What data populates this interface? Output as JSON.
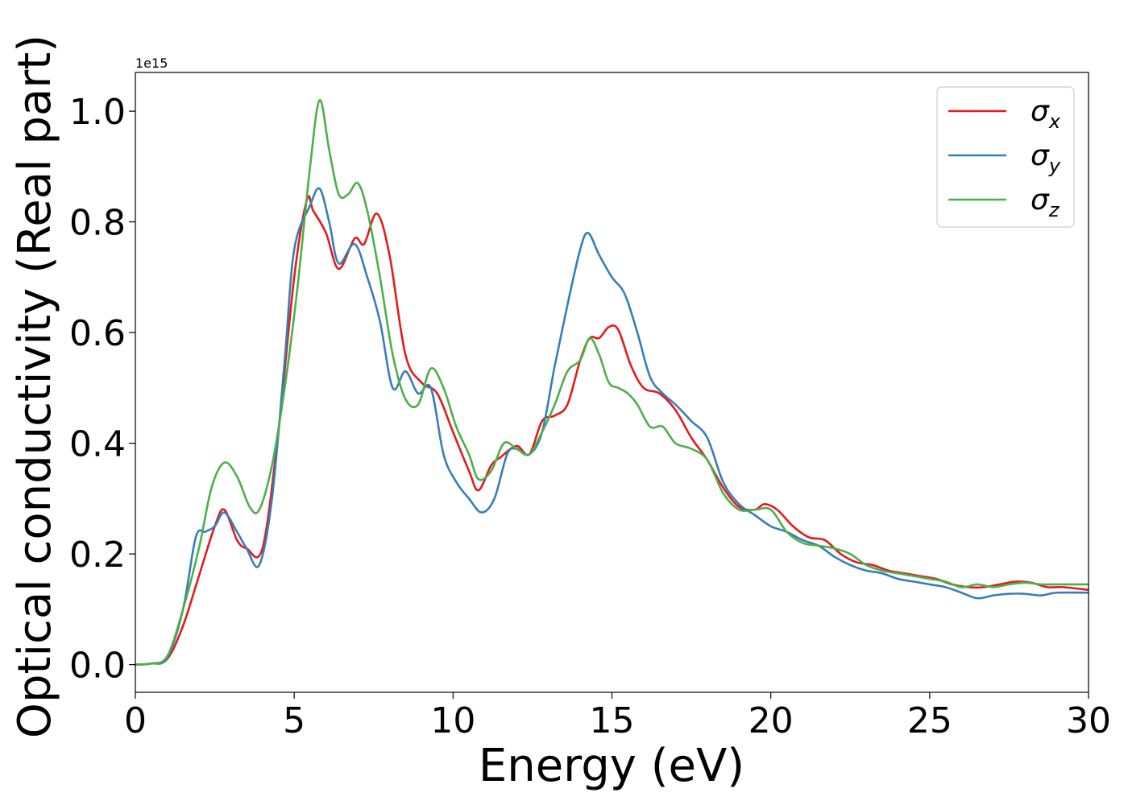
{
  "chart_data": {
    "type": "line",
    "xlabel": "Energy (eV)",
    "ylabel": "Optical conductivity (Real part)",
    "offset_text": "1e15",
    "xlim": [
      0,
      30
    ],
    "ylim": [
      -0.05,
      1.07
    ],
    "xticks": [
      0,
      5,
      10,
      15,
      20,
      25,
      30
    ],
    "xtick_labels": [
      "0",
      "5",
      "10",
      "15",
      "20",
      "25",
      "30"
    ],
    "yticks": [
      0.0,
      0.2,
      0.4,
      0.6,
      0.8,
      1.0
    ],
    "ytick_labels": [
      "0.0",
      "0.2",
      "0.4",
      "0.6",
      "0.8",
      "1.0"
    ],
    "grid": false,
    "legend_position": "top-right",
    "series": [
      {
        "name": "σx",
        "name_base": "σ",
        "name_sub": "x",
        "color": "#e41a1c",
        "x": [
          0,
          0.5,
          1.0,
          1.5,
          2.0,
          2.5,
          2.8,
          3.2,
          3.5,
          4.0,
          4.5,
          5.0,
          5.4,
          5.6,
          6.0,
          6.4,
          6.9,
          7.2,
          7.6,
          8.0,
          8.5,
          9.0,
          9.5,
          10.0,
          10.5,
          10.8,
          11.2,
          11.5,
          12.0,
          12.4,
          12.8,
          13.2,
          13.6,
          14.0,
          14.3,
          14.6,
          14.9,
          15.2,
          15.6,
          16.0,
          16.5,
          17.0,
          17.5,
          18.0,
          18.5,
          19.0,
          19.5,
          19.8,
          20.2,
          20.7,
          21.2,
          21.7,
          22.2,
          22.7,
          23.2,
          23.7,
          24.2,
          24.7,
          25.2,
          25.7,
          26.2,
          26.7,
          27.2,
          27.7,
          28.2,
          28.7,
          29.2,
          30.0
        ],
        "y": [
          0.0,
          0.002,
          0.01,
          0.07,
          0.16,
          0.25,
          0.28,
          0.225,
          0.21,
          0.21,
          0.42,
          0.7,
          0.84,
          0.82,
          0.78,
          0.715,
          0.77,
          0.76,
          0.815,
          0.74,
          0.56,
          0.51,
          0.49,
          0.42,
          0.35,
          0.315,
          0.36,
          0.375,
          0.395,
          0.38,
          0.44,
          0.45,
          0.47,
          0.55,
          0.59,
          0.59,
          0.61,
          0.605,
          0.54,
          0.5,
          0.49,
          0.46,
          0.41,
          0.37,
          0.32,
          0.285,
          0.28,
          0.29,
          0.28,
          0.25,
          0.23,
          0.225,
          0.2,
          0.185,
          0.18,
          0.17,
          0.165,
          0.16,
          0.155,
          0.145,
          0.14,
          0.14,
          0.145,
          0.15,
          0.148,
          0.14,
          0.14,
          0.135
        ]
      },
      {
        "name": "σy",
        "name_base": "σ",
        "name_sub": "y",
        "color": "#377eb8",
        "x": [
          0,
          0.5,
          1.0,
          1.5,
          1.9,
          2.2,
          2.5,
          2.8,
          3.2,
          3.5,
          3.9,
          4.3,
          4.7,
          5.0,
          5.5,
          5.8,
          6.1,
          6.4,
          6.9,
          7.3,
          7.7,
          8.1,
          8.5,
          8.9,
          9.3,
          9.7,
          10.1,
          10.5,
          10.9,
          11.3,
          11.7,
          12.0,
          12.4,
          12.8,
          13.2,
          13.6,
          14.0,
          14.25,
          14.6,
          15.0,
          15.4,
          15.8,
          16.2,
          16.6,
          17.0,
          17.5,
          18.0,
          18.5,
          19.0,
          19.5,
          20.0,
          20.5,
          21.0,
          21.5,
          22.0,
          22.5,
          23.0,
          23.5,
          24.0,
          24.5,
          25.0,
          25.5,
          26.0,
          26.5,
          27.0,
          27.5,
          28.0,
          28.5,
          29.0,
          30.0
        ],
        "y": [
          0.0,
          0.002,
          0.012,
          0.1,
          0.23,
          0.24,
          0.25,
          0.275,
          0.24,
          0.21,
          0.18,
          0.3,
          0.55,
          0.75,
          0.83,
          0.86,
          0.8,
          0.725,
          0.76,
          0.7,
          0.62,
          0.5,
          0.53,
          0.49,
          0.5,
          0.38,
          0.33,
          0.3,
          0.275,
          0.3,
          0.38,
          0.39,
          0.38,
          0.42,
          0.54,
          0.65,
          0.75,
          0.78,
          0.74,
          0.7,
          0.67,
          0.6,
          0.52,
          0.49,
          0.47,
          0.44,
          0.41,
          0.33,
          0.29,
          0.27,
          0.25,
          0.24,
          0.225,
          0.215,
          0.195,
          0.18,
          0.17,
          0.165,
          0.155,
          0.15,
          0.145,
          0.14,
          0.13,
          0.12,
          0.125,
          0.128,
          0.128,
          0.125,
          0.13,
          0.13
        ]
      },
      {
        "name": "σz",
        "name_base": "σ",
        "name_sub": "z",
        "color": "#4daf4a",
        "x": [
          0,
          0.5,
          1.0,
          1.5,
          2.0,
          2.4,
          2.8,
          3.2,
          3.6,
          3.9,
          4.3,
          4.7,
          5.1,
          5.5,
          5.8,
          6.1,
          6.4,
          6.7,
          7.0,
          7.3,
          7.7,
          8.1,
          8.5,
          8.9,
          9.3,
          9.7,
          10.1,
          10.5,
          10.8,
          11.2,
          11.6,
          12.0,
          12.4,
          12.8,
          13.2,
          13.6,
          14.0,
          14.3,
          14.6,
          14.9,
          15.2,
          15.5,
          15.8,
          16.2,
          16.6,
          17.0,
          17.5,
          18.0,
          18.5,
          19.0,
          19.5,
          20.0,
          20.5,
          21.0,
          21.5,
          22.0,
          22.5,
          23.0,
          23.5,
          24.0,
          24.5,
          25.0,
          25.5,
          26.0,
          26.5,
          27.0,
          27.5,
          28.0,
          28.5,
          29.0,
          30.0
        ],
        "y": [
          0.0,
          0.002,
          0.015,
          0.1,
          0.21,
          0.32,
          0.365,
          0.34,
          0.285,
          0.28,
          0.36,
          0.5,
          0.68,
          0.9,
          1.02,
          0.93,
          0.85,
          0.85,
          0.87,
          0.82,
          0.7,
          0.56,
          0.48,
          0.47,
          0.535,
          0.5,
          0.43,
          0.38,
          0.335,
          0.35,
          0.4,
          0.39,
          0.38,
          0.42,
          0.47,
          0.53,
          0.55,
          0.59,
          0.56,
          0.51,
          0.5,
          0.49,
          0.47,
          0.43,
          0.43,
          0.4,
          0.39,
          0.37,
          0.31,
          0.28,
          0.28,
          0.28,
          0.24,
          0.22,
          0.215,
          0.21,
          0.2,
          0.18,
          0.17,
          0.165,
          0.16,
          0.155,
          0.15,
          0.14,
          0.145,
          0.14,
          0.145,
          0.148,
          0.145,
          0.145,
          0.145
        ]
      }
    ]
  }
}
